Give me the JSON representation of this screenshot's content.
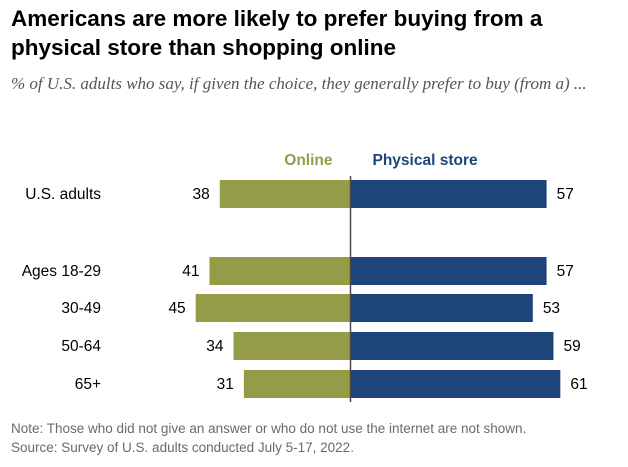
{
  "title": "Americans are more likely to prefer buying from a physical store than shopping online",
  "subtitle": "% of U.S. adults who say, if given the choice, they generally prefer to buy (from a) ...",
  "chart_data": {
    "type": "bar",
    "orientation": "diverging-horizontal",
    "categories": [
      "U.S. adults",
      "Ages 18-29",
      "30-49",
      "50-64",
      "65+"
    ],
    "series": [
      {
        "name": "Online",
        "values": [
          38,
          41,
          45,
          34,
          31
        ],
        "color": "#949c48"
      },
      {
        "name": "Physical store",
        "values": [
          57,
          57,
          53,
          59,
          61
        ],
        "color": "#1e4579"
      }
    ],
    "xlim": [
      -45,
      61
    ],
    "grid": false
  },
  "notes": [
    "Note: Those who did not give an answer or who do not use the internet are not shown.",
    "Source: Survey of U.S. adults conducted July 5-17, 2022."
  ]
}
